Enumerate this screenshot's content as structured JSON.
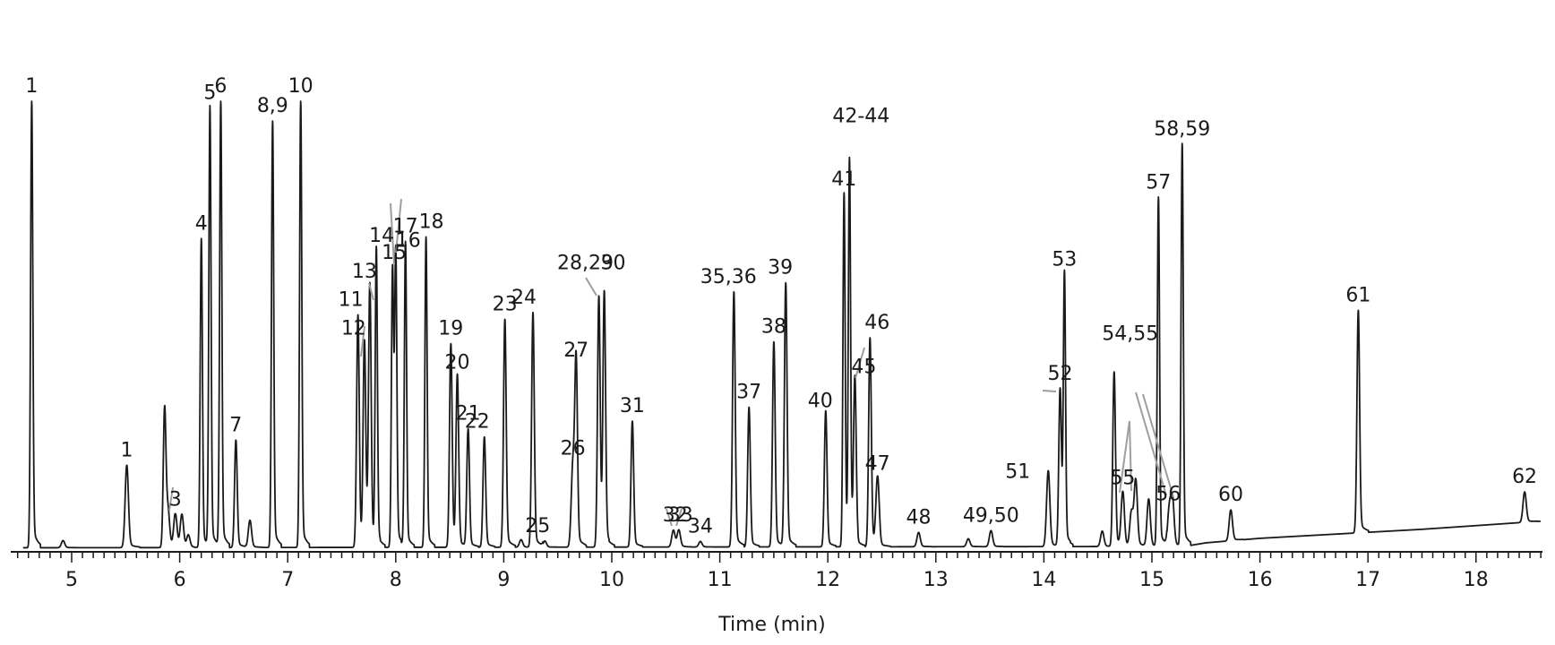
{
  "chart_data": {
    "type": "line",
    "xlabel": "Time (min)",
    "ylabel": "",
    "xlim": [
      4.5,
      18.6
    ],
    "ylim": [
      0,
      100
    ],
    "x_ticks": [
      "5",
      "6",
      "7",
      "8",
      "9",
      "10",
      "11",
      "12",
      "13",
      "14",
      "15",
      "16",
      "17",
      "18"
    ],
    "grid": false,
    "legend": "none",
    "baseline": [
      {
        "x": 4.5,
        "y": 0.9
      },
      {
        "x": 15.3,
        "y": 1.2
      },
      {
        "x": 15.5,
        "y": 2.0
      },
      {
        "x": 16.0,
        "y": 3.0
      },
      {
        "x": 17.5,
        "y": 5.0
      },
      {
        "x": 18.6,
        "y": 6.8
      }
    ],
    "peaks": [
      {
        "label": "1",
        "x": 4.63,
        "y": 100
      },
      {
        "label": "",
        "x": 4.92,
        "y": 2.5
      },
      {
        "label": "1",
        "x": 5.51,
        "y": 19.2
      },
      {
        "label": "",
        "x": 5.86,
        "y": 31.2
      },
      {
        "label": "",
        "x": 5.89,
        "y": 9
      },
      {
        "label": "3",
        "x": 5.96,
        "y": 8.3
      },
      {
        "label": "",
        "x": 6.02,
        "y": 8.2
      },
      {
        "label": "",
        "x": 6.08,
        "y": 3.6
      },
      {
        "label": "4",
        "x": 6.2,
        "y": 69.5
      },
      {
        "label": "5",
        "x": 6.28,
        "y": 98.5
      },
      {
        "label": "6",
        "x": 6.38,
        "y": 100
      },
      {
        "label": "7",
        "x": 6.52,
        "y": 24.8
      },
      {
        "label": "",
        "x": 6.65,
        "y": 7
      },
      {
        "label": "8,9",
        "x": 6.86,
        "y": 95.6
      },
      {
        "label": "10",
        "x": 7.12,
        "y": 100
      },
      {
        "label": "11",
        "x": 7.65,
        "y": 52.6
      },
      {
        "label": "12",
        "x": 7.71,
        "y": 46.2
      },
      {
        "label": "13",
        "x": 7.76,
        "y": 58.8
      },
      {
        "label": "14",
        "x": 7.82,
        "y": 66.8
      },
      {
        "label": "15",
        "x": 7.97,
        "y": 63
      },
      {
        "label": "16",
        "x": 8.0,
        "y": 65.7
      },
      {
        "label": "17",
        "x": 8.09,
        "y": 68.9
      },
      {
        "label": "18",
        "x": 8.28,
        "y": 69.9
      },
      {
        "label": "19",
        "x": 8.51,
        "y": 46.2
      },
      {
        "label": "20",
        "x": 8.57,
        "y": 38.7
      },
      {
        "label": "21",
        "x": 8.67,
        "y": 27.3
      },
      {
        "label": "22",
        "x": 8.82,
        "y": 25.5
      },
      {
        "label": "",
        "x": 9.16,
        "y": 2.7
      },
      {
        "label": "23",
        "x": 9.01,
        "y": 51.6
      },
      {
        "label": "24",
        "x": 9.27,
        "y": 53.1
      },
      {
        "label": "25",
        "x": 9.38,
        "y": 2.4
      },
      {
        "label": "26",
        "x": 9.64,
        "y": 19.6
      },
      {
        "label": "27",
        "x": 9.67,
        "y": 41.4
      },
      {
        "label": "28,29",
        "x": 9.88,
        "y": 56.8
      },
      {
        "label": "30",
        "x": 9.93,
        "y": 56.8
      },
      {
        "label": "31",
        "x": 10.19,
        "y": 29
      },
      {
        "label": "32",
        "x": 10.57,
        "y": 4.8
      },
      {
        "label": "33",
        "x": 10.62,
        "y": 4.8
      },
      {
        "label": "34",
        "x": 10.82,
        "y": 2.3
      },
      {
        "label": "35,36",
        "x": 11.13,
        "y": 57.7
      },
      {
        "label": "37",
        "x": 11.27,
        "y": 32.1
      },
      {
        "label": "38",
        "x": 11.5,
        "y": 46.6
      },
      {
        "label": "39",
        "x": 11.61,
        "y": 59.7
      },
      {
        "label": "40",
        "x": 11.98,
        "y": 31.3
      },
      {
        "label": "41",
        "x": 12.15,
        "y": 79.7
      },
      {
        "label": "42-44",
        "x": 12.2,
        "y": 86.2
      },
      {
        "label": "45",
        "x": 12.25,
        "y": 37.7
      },
      {
        "label": "46",
        "x": 12.39,
        "y": 47.5
      },
      {
        "label": "47",
        "x": 12.46,
        "y": 16.2
      },
      {
        "label": "48",
        "x": 12.84,
        "y": 4.3
      },
      {
        "label": "",
        "x": 13.3,
        "y": 2.9
      },
      {
        "label": "49,50",
        "x": 13.51,
        "y": 4.7
      },
      {
        "label": "51",
        "x": 14.04,
        "y": 18
      },
      {
        "label": "52",
        "x": 14.15,
        "y": 36.2
      },
      {
        "label": "53",
        "x": 14.19,
        "y": 61.5
      },
      {
        "label": "",
        "x": 14.54,
        "y": 4.6
      },
      {
        "label": "54,55",
        "x": 14.65,
        "y": 39.9
      },
      {
        "label": "55",
        "x": 14.73,
        "y": 13
      },
      {
        "label": "",
        "x": 14.81,
        "y": 8.7
      },
      {
        "label": "",
        "x": 14.85,
        "y": 15.8
      },
      {
        "label": "",
        "x": 14.97,
        "y": 11.7
      },
      {
        "label": "57",
        "x": 15.06,
        "y": 78.6
      },
      {
        "label": "56",
        "x": 15.16,
        "y": 9.4
      },
      {
        "label": "",
        "x": 15.19,
        "y": 11.5
      },
      {
        "label": "58,59",
        "x": 15.28,
        "y": 90.5
      },
      {
        "label": "60",
        "x": 15.73,
        "y": 9.3
      },
      {
        "label": "61",
        "x": 16.91,
        "y": 53.6
      },
      {
        "label": "62",
        "x": 18.45,
        "y": 13.3
      }
    ]
  }
}
